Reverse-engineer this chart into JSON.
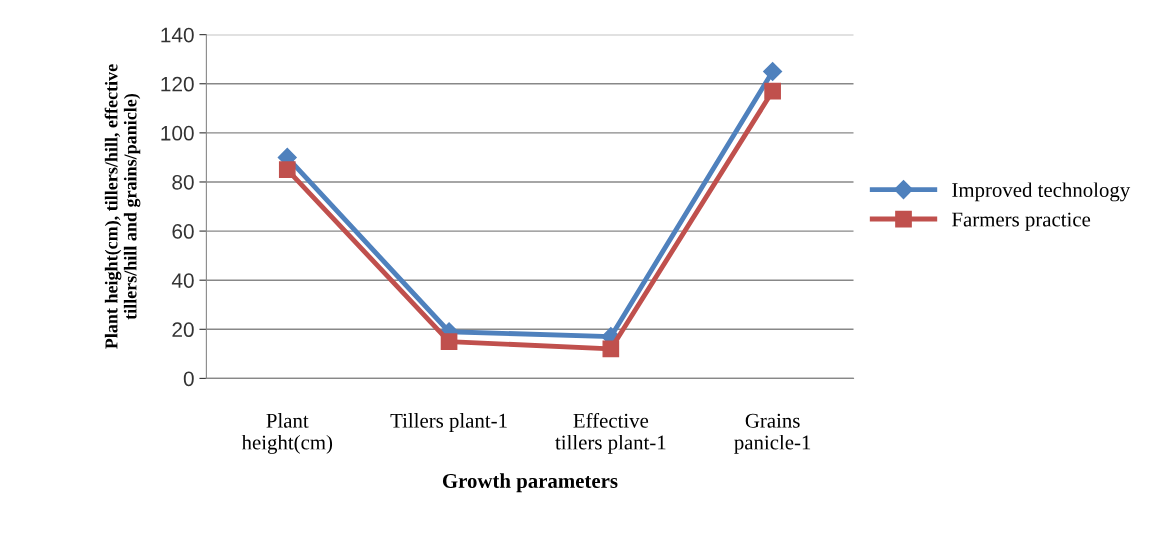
{
  "chart_data": {
    "type": "line",
    "xlabel": "Growth parameters",
    "ylabel": "Plant height(cm), tillers/hill, effective\ntillers/hill and grains/panicle)",
    "categories": [
      "Plant\nheight(cm)",
      "Tillers plant-1",
      "Effective\ntillers plant-1",
      "Grains\npanicle-1"
    ],
    "series": [
      {
        "name": "Improved technology",
        "color": "#4f81bd",
        "marker": "diamond",
        "values": [
          90,
          19,
          17,
          125
        ]
      },
      {
        "name": "Farmers practice",
        "color": "#c0504d",
        "marker": "square",
        "values": [
          85,
          15,
          12,
          117
        ]
      }
    ],
    "ylim": [
      0,
      140
    ],
    "yticks": [
      0,
      20,
      40,
      60,
      80,
      100,
      120,
      140
    ],
    "grid": "y",
    "legend": "right"
  }
}
